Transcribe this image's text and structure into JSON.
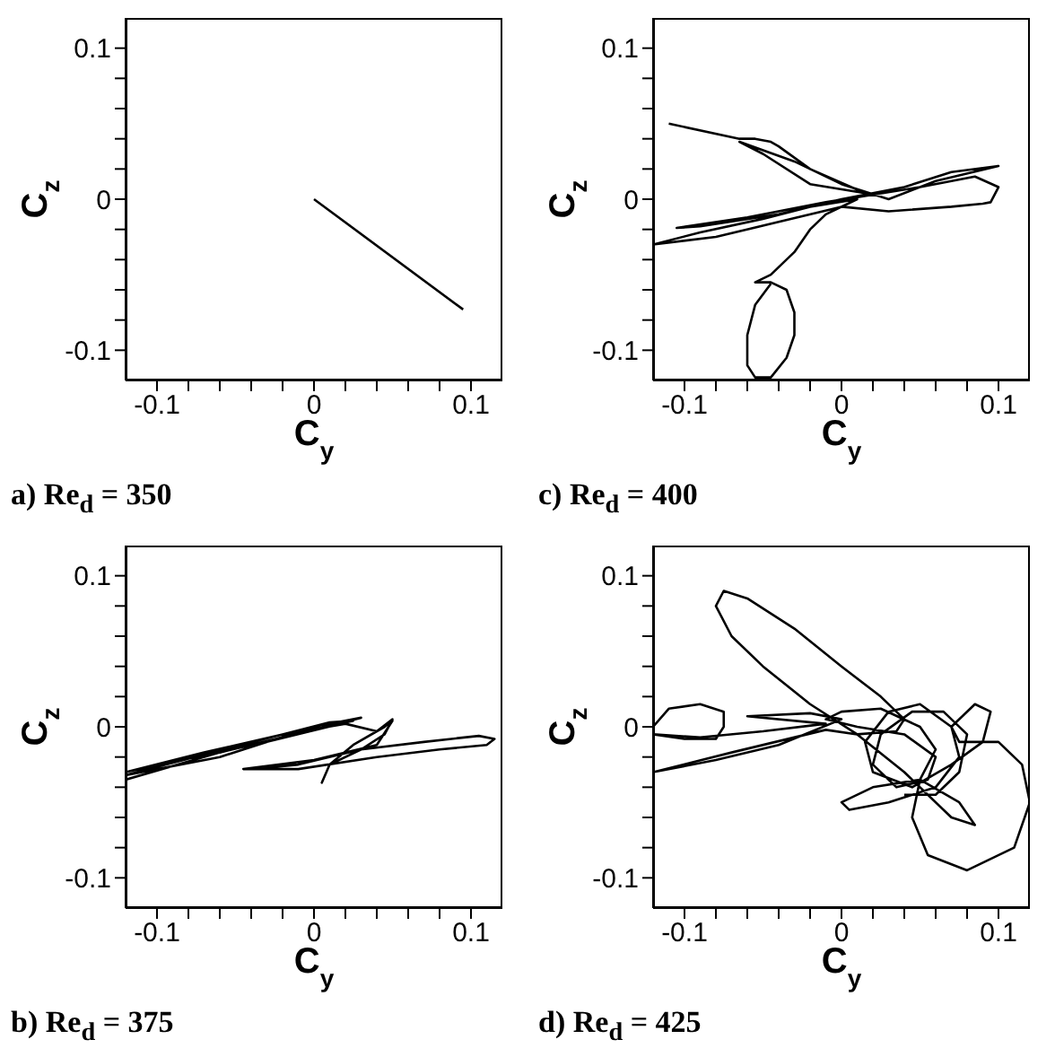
{
  "chart_data": [
    {
      "type": "line",
      "xlabel": "C$_{y}$",
      "ylabel": "C$_{z}$",
      "xlim": [
        -0.12,
        0.12
      ],
      "ylim": [
        -0.12,
        0.12
      ],
      "xticks": [
        -0.1,
        {
          "value": -0.08,
          "label": null
        },
        {
          "value": -0.06,
          "label": null
        },
        {
          "value": -0.04,
          "label": null
        },
        {
          "value": -0.02,
          "label": null
        },
        0,
        {
          "value": 0.02,
          "label": null
        },
        {
          "value": 0.04,
          "label": null
        },
        {
          "value": 0.06,
          "label": null
        },
        {
          "value": 0.08,
          "label": null
        },
        0.1
      ],
      "yticks": [
        -0.1,
        {
          "value": -0.08,
          "label": null
        },
        {
          "value": -0.06,
          "label": null
        },
        {
          "value": -0.04,
          "label": null
        },
        {
          "value": -0.02,
          "label": null
        },
        0,
        {
          "value": 0.02,
          "label": null
        },
        {
          "value": 0.04,
          "label": null
        },
        {
          "value": 0.06,
          "label": null
        },
        {
          "value": 0.08,
          "label": null
        },
        0.1
      ],
      "annotations": [
        "a) Re$_{d}$ = 350"
      ],
      "series": [
        {
          "color": "#000000",
          "x": [
            0.0,
            0.095
          ],
          "values": [
            0.0,
            -0.073
          ]
        }
      ]
    },
    {
      "type": "line",
      "xlabel": "C$_{y}$",
      "ylabel": "C$_{z}$",
      "xlim": [
        -0.12,
        0.12
      ],
      "ylim": [
        -0.12,
        0.12
      ],
      "xticks": [
        -0.1,
        {
          "value": -0.08,
          "label": null
        },
        {
          "value": -0.06,
          "label": null
        },
        {
          "value": -0.04,
          "label": null
        },
        {
          "value": -0.02,
          "label": null
        },
        0,
        {
          "value": 0.02,
          "label": null
        },
        {
          "value": 0.04,
          "label": null
        },
        {
          "value": 0.06,
          "label": null
        },
        {
          "value": 0.08,
          "label": null
        },
        0.1
      ],
      "yticks": [
        -0.1,
        {
          "value": -0.08,
          "label": null
        },
        {
          "value": -0.06,
          "label": null
        },
        {
          "value": -0.04,
          "label": null
        },
        {
          "value": -0.02,
          "label": null
        },
        0,
        {
          "value": 0.02,
          "label": null
        },
        {
          "value": 0.04,
          "label": null
        },
        {
          "value": 0.06,
          "label": null
        },
        {
          "value": 0.08,
          "label": null
        },
        0.1
      ],
      "annotations": [
        "c) Re$_{d}$ = 400"
      ],
      "series": [
        {
          "color": "#000000",
          "x": [
            -0.11,
            -0.065,
            -0.055,
            -0.045,
            -0.04,
            -0.02,
            0.015,
            -0.02,
            -0.05,
            -0.065,
            -0.03,
            0.0,
            0.03,
            0.06,
            0.1,
            0.07,
            0.04,
            0.0,
            -0.04,
            -0.09,
            -0.105,
            -0.06,
            -0.01,
            0.05,
            0.085,
            0.1,
            0.095,
            0.09,
            0.07,
            0.03,
            0.0,
            -0.04,
            -0.08,
            -0.12,
            -0.09,
            -0.05,
            -0.02,
            0.01,
            -0.01,
            -0.02,
            -0.03,
            -0.045,
            -0.055,
            -0.045,
            -0.035,
            -0.03,
            -0.03,
            -0.035,
            -0.045,
            -0.055,
            -0.06,
            -0.06,
            -0.055,
            -0.045
          ],
          "values": [
            0.05,
            0.04,
            0.04,
            0.038,
            0.035,
            0.02,
            0.004,
            0.01,
            0.03,
            0.038,
            0.025,
            0.01,
            0.0,
            0.012,
            0.022,
            0.018,
            0.008,
            0.0,
            -0.01,
            -0.018,
            -0.019,
            -0.012,
            -0.002,
            0.008,
            0.015,
            0.008,
            -0.002,
            -0.003,
            -0.005,
            -0.008,
            -0.005,
            -0.015,
            -0.025,
            -0.03,
            -0.022,
            -0.013,
            -0.005,
            0.0,
            -0.01,
            -0.02,
            -0.035,
            -0.05,
            -0.055,
            -0.055,
            -0.06,
            -0.075,
            -0.09,
            -0.105,
            -0.118,
            -0.118,
            -0.11,
            -0.09,
            -0.07,
            -0.056
          ]
        }
      ]
    },
    {
      "type": "line",
      "xlabel": "C$_{y}$",
      "ylabel": "C$_{z}$",
      "xlim": [
        -0.12,
        0.12
      ],
      "ylim": [
        -0.12,
        0.12
      ],
      "xticks": [
        -0.1,
        {
          "value": -0.08,
          "label": null
        },
        {
          "value": -0.06,
          "label": null
        },
        {
          "value": -0.04,
          "label": null
        },
        {
          "value": -0.02,
          "label": null
        },
        0,
        {
          "value": 0.02,
          "label": null
        },
        {
          "value": 0.04,
          "label": null
        },
        {
          "value": 0.06,
          "label": null
        },
        {
          "value": 0.08,
          "label": null
        },
        0.1
      ],
      "yticks": [
        -0.1,
        {
          "value": -0.08,
          "label": null
        },
        {
          "value": -0.06,
          "label": null
        },
        {
          "value": -0.04,
          "label": null
        },
        {
          "value": -0.02,
          "label": null
        },
        0,
        {
          "value": 0.02,
          "label": null
        },
        {
          "value": 0.04,
          "label": null
        },
        {
          "value": 0.06,
          "label": null
        },
        {
          "value": 0.08,
          "label": null
        },
        0.1
      ],
      "annotations": [
        "b) Re$_{d}$ = 375"
      ],
      "series": [
        {
          "color": "#000000",
          "x": [
            -0.12,
            -0.06,
            0.0,
            0.03,
            0.0,
            -0.06,
            -0.12,
            -0.05,
            0.01,
            0.025,
            -0.03,
            -0.12,
            -0.07,
            -0.02,
            0.02,
            0.04,
            0.05,
            0.045,
            0.03,
            0.01,
            0.005,
            0.01,
            0.025,
            0.045,
            0.05,
            0.04,
            0.0,
            -0.045,
            -0.01,
            0.04,
            0.08,
            0.11,
            0.115,
            0.105,
            0.07,
            0.03,
            -0.01,
            -0.04
          ],
          "values": [
            -0.035,
            -0.017,
            -0.002,
            0.006,
            0.0,
            -0.02,
            -0.032,
            -0.013,
            0.003,
            0.004,
            -0.01,
            -0.03,
            -0.017,
            -0.005,
            0.002,
            -0.003,
            0.005,
            -0.005,
            -0.015,
            -0.025,
            -0.037,
            -0.025,
            -0.012,
            0.0,
            0.004,
            -0.012,
            -0.022,
            -0.028,
            -0.028,
            -0.02,
            -0.015,
            -0.012,
            -0.008,
            -0.006,
            -0.01,
            -0.015,
            -0.025,
            -0.028
          ]
        }
      ]
    },
    {
      "type": "line",
      "xlabel": "C$_{y}$",
      "ylabel": "C$_{z}$",
      "xlim": [
        -0.12,
        0.12
      ],
      "ylim": [
        -0.12,
        0.12
      ],
      "xticks": [
        -0.1,
        {
          "value": -0.08,
          "label": null
        },
        {
          "value": -0.06,
          "label": null
        },
        {
          "value": -0.04,
          "label": null
        },
        {
          "value": -0.02,
          "label": null
        },
        0,
        {
          "value": 0.02,
          "label": null
        },
        {
          "value": 0.04,
          "label": null
        },
        {
          "value": 0.06,
          "label": null
        },
        {
          "value": 0.08,
          "label": null
        },
        0.1
      ],
      "yticks": [
        -0.1,
        {
          "value": -0.08,
          "label": null
        },
        {
          "value": -0.06,
          "label": null
        },
        {
          "value": -0.04,
          "label": null
        },
        {
          "value": -0.02,
          "label": null
        },
        0,
        {
          "value": 0.02,
          "label": null
        },
        {
          "value": 0.04,
          "label": null
        },
        {
          "value": 0.06,
          "label": null
        },
        {
          "value": 0.08,
          "label": null
        },
        0.1
      ],
      "annotations": [
        "d) Re$_{d}$ = 425"
      ],
      "series": [
        {
          "color": "#000000",
          "x": [
            -0.12,
            -0.11,
            -0.09,
            -0.075,
            -0.075,
            -0.08,
            -0.1,
            -0.12,
            -0.09,
            -0.05,
            -0.01,
            -0.06,
            -0.02,
            0.0,
            -0.04,
            -0.08,
            -0.12,
            -0.07,
            -0.01,
            0.01,
            0.035,
            0.04,
            0.025,
            0.0,
            -0.03,
            -0.06,
            -0.075,
            -0.08,
            -0.07,
            -0.05,
            -0.02,
            0.01,
            0.04,
            0.07,
            0.085,
            0.075,
            0.05,
            0.02,
            0.0,
            0.005,
            0.03,
            0.06,
            0.075,
            0.07,
            0.05,
            0.03,
            0.015,
            0.02,
            0.045,
            0.07,
            0.09,
            0.095,
            0.085,
            0.07,
            0.075,
            0.1,
            0.115,
            0.12,
            0.11,
            0.08,
            0.055,
            0.045,
            0.05,
            0.06,
            0.05,
            0.025,
            0.0,
            -0.01,
            0.01,
            0.04,
            0.06,
            0.055,
            0.035,
            0.02,
            0.025,
            0.045,
            0.065,
            0.08,
            0.075,
            0.06,
            0.04
          ],
          "values": [
            0.0,
            0.012,
            0.015,
            0.01,
            0.0,
            -0.008,
            -0.008,
            -0.005,
            -0.007,
            -0.003,
            0.002,
            0.007,
            0.009,
            0.005,
            -0.012,
            -0.022,
            -0.03,
            -0.017,
            -0.002,
            -0.005,
            -0.003,
            0.005,
            0.02,
            0.04,
            0.065,
            0.085,
            0.09,
            0.08,
            0.06,
            0.04,
            0.015,
            -0.005,
            -0.03,
            -0.06,
            -0.065,
            -0.05,
            -0.035,
            -0.04,
            -0.05,
            -0.055,
            -0.05,
            -0.04,
            -0.02,
            0.0,
            0.015,
            0.01,
            -0.01,
            -0.03,
            -0.04,
            -0.025,
            -0.01,
            0.01,
            0.015,
            0.0,
            -0.01,
            -0.01,
            -0.025,
            -0.05,
            -0.08,
            -0.095,
            -0.085,
            -0.06,
            -0.035,
            -0.015,
            0.0,
            0.012,
            0.01,
            0.005,
            0.0,
            -0.005,
            -0.02,
            -0.035,
            -0.04,
            -0.025,
            -0.005,
            0.01,
            0.01,
            -0.005,
            -0.03,
            -0.045,
            -0.045
          ]
        }
      ]
    }
  ]
}
